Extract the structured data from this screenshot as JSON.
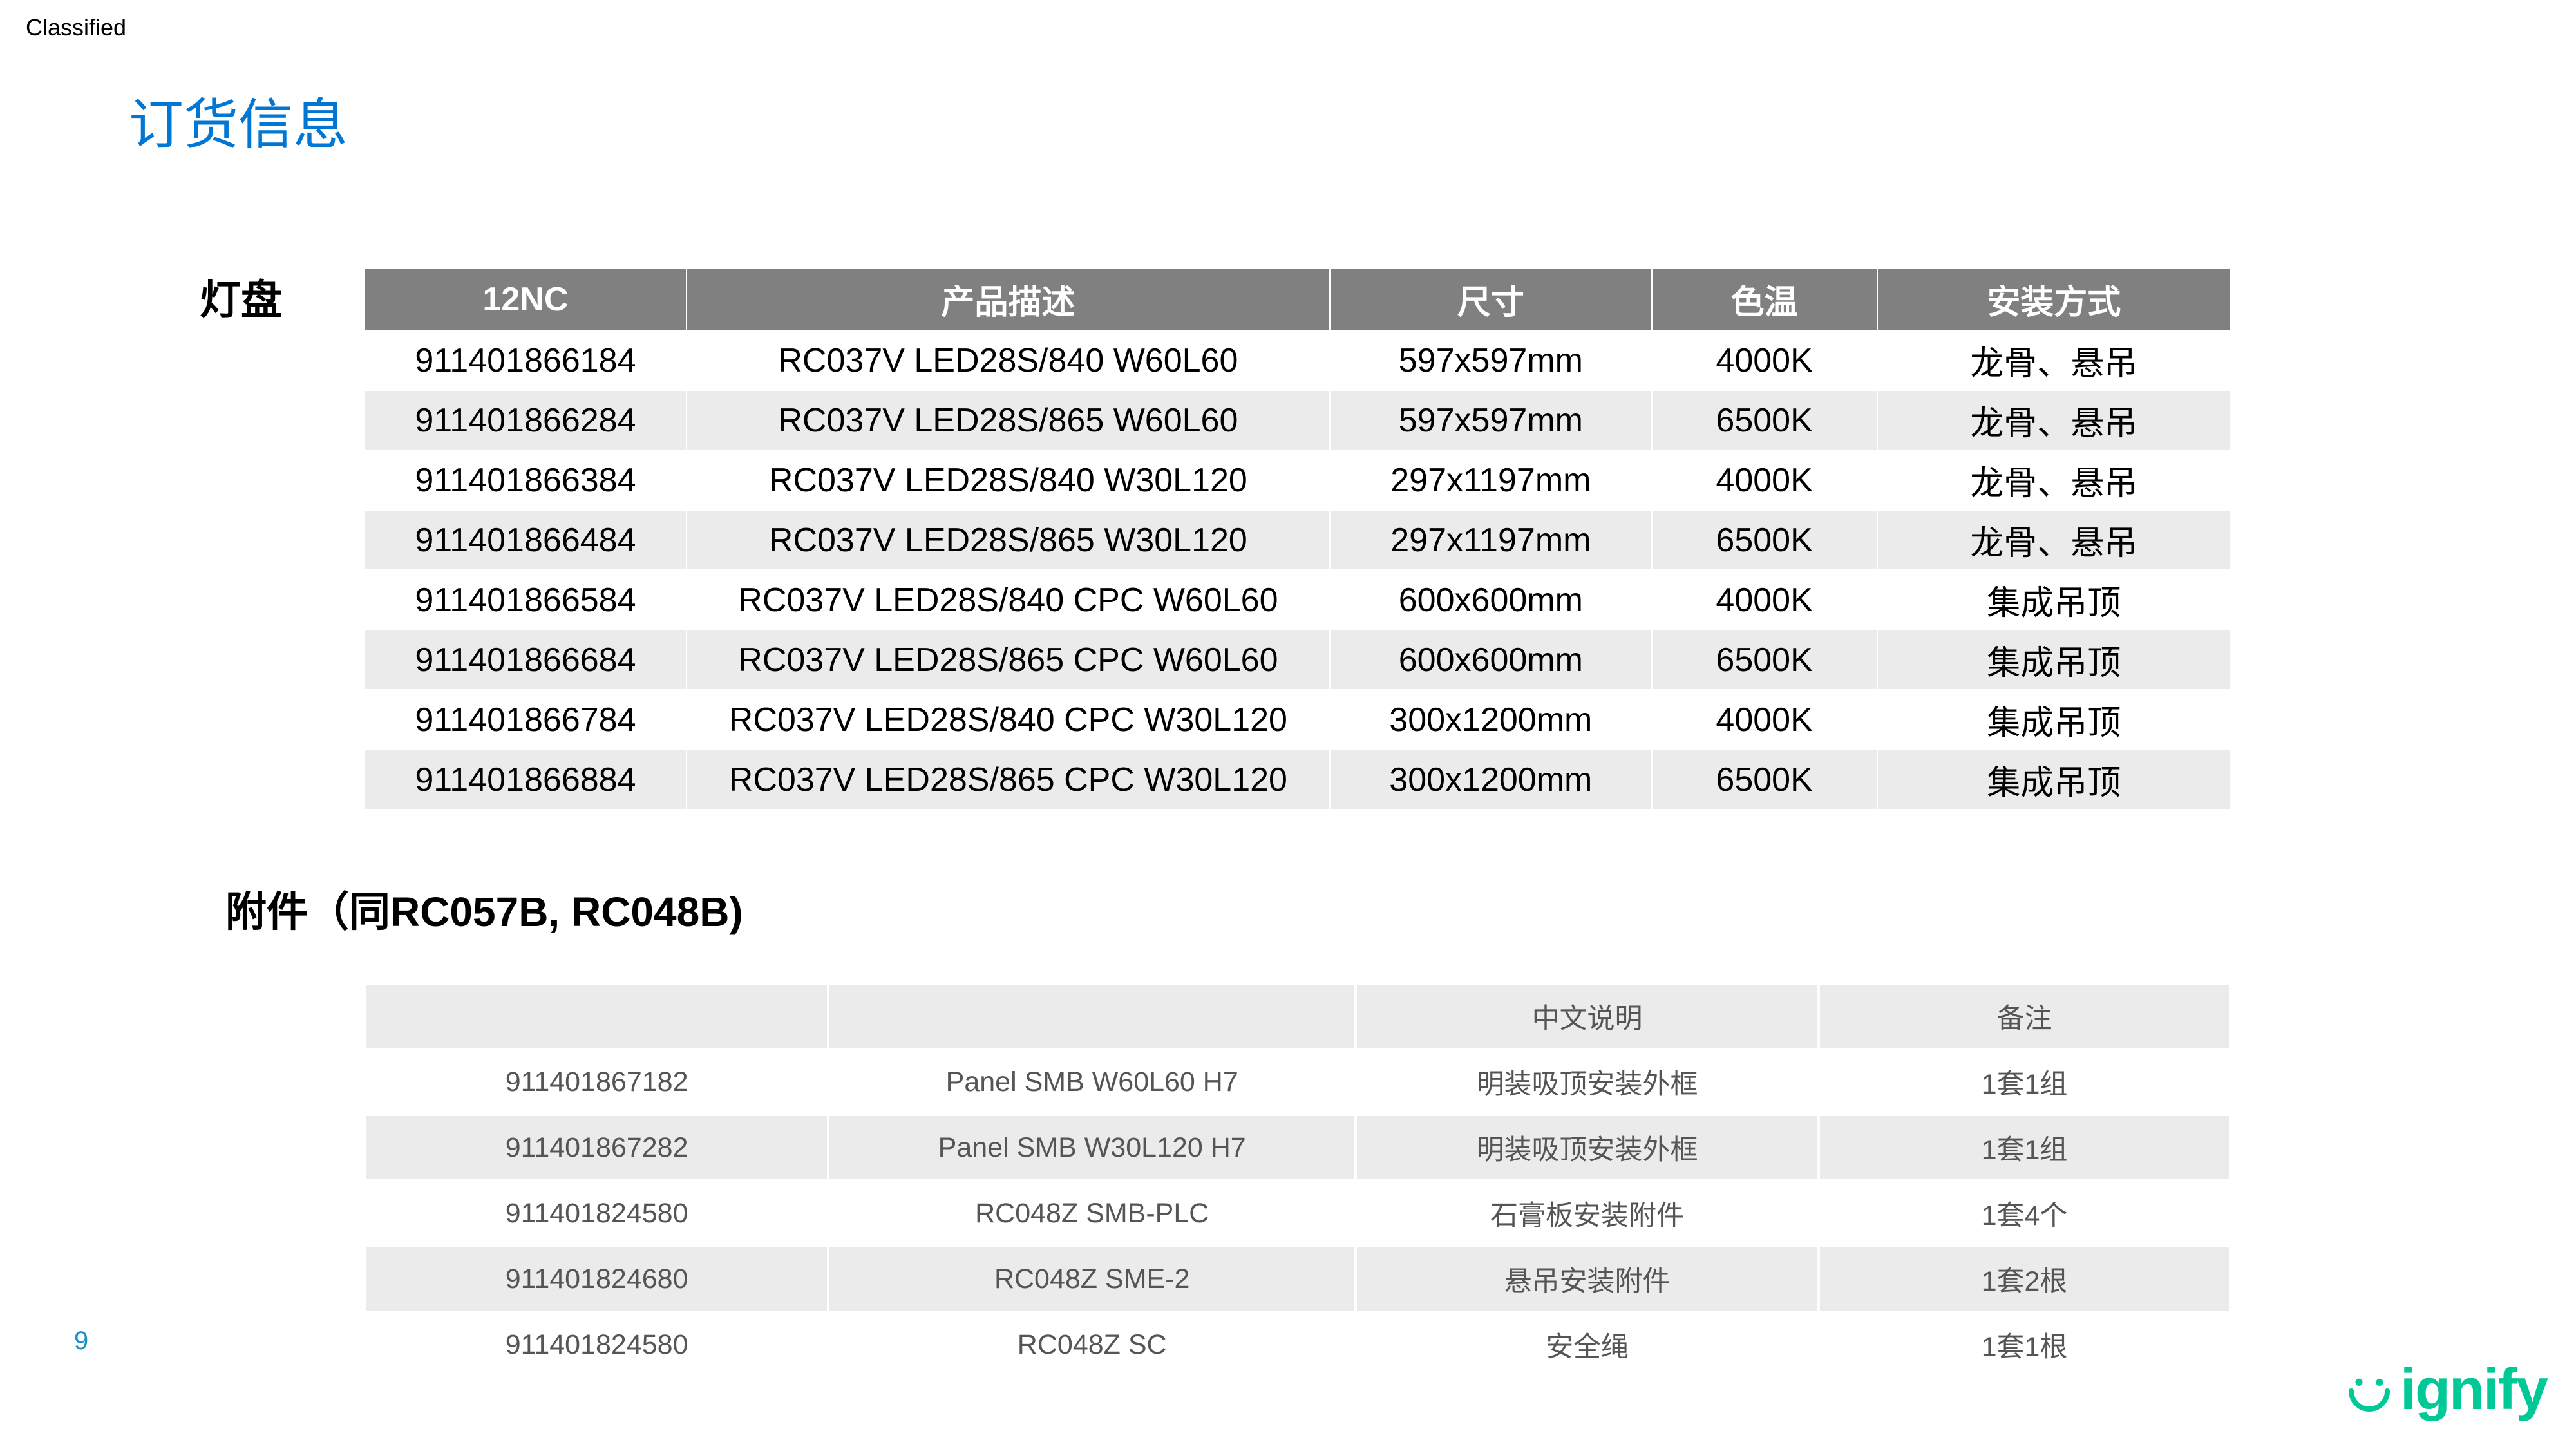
{
  "classified_label": "Classified",
  "page_title": "订货信息",
  "page_number": "9",
  "brand_text": "ignify",
  "colors": {
    "title": "#0077d4",
    "header_bg": "#808080",
    "header_fg": "#ffffff",
    "row_alt_bg": "#ebebeb",
    "row_bg": "#ffffff",
    "brand": "#00c896",
    "page_num": "#1e90c8"
  },
  "section1": {
    "label": "灯盘",
    "columns": [
      "12NC",
      "产品描述",
      "尺寸",
      "色温",
      "安装方式"
    ],
    "rows": [
      [
        "911401866184",
        "RC037V LED28S/840 W60L60",
        "597x597mm",
        "4000K",
        "龙骨、悬吊"
      ],
      [
        "911401866284",
        "RC037V LED28S/865 W60L60",
        "597x597mm",
        "6500K",
        "龙骨、悬吊"
      ],
      [
        "911401866384",
        "RC037V LED28S/840 W30L120",
        "297x1197mm",
        "4000K",
        "龙骨、悬吊"
      ],
      [
        "911401866484",
        "RC037V LED28S/865 W30L120",
        "297x1197mm",
        "6500K",
        "龙骨、悬吊"
      ],
      [
        "911401866584",
        "RC037V LED28S/840 CPC W60L60",
        "600x600mm",
        "4000K",
        "集成吊顶"
      ],
      [
        "911401866684",
        "RC037V LED28S/865 CPC W60L60",
        "600x600mm",
        "6500K",
        "集成吊顶"
      ],
      [
        "911401866784",
        "RC037V LED28S/840 CPC W30L120",
        "300x1200mm",
        "4000K",
        "集成吊顶"
      ],
      [
        "911401866884",
        "RC037V LED28S/865 CPC W30L120",
        "300x1200mm",
        "6500K",
        "集成吊顶"
      ]
    ]
  },
  "section2": {
    "label": "附件（同RC057B, RC048B)",
    "columns": [
      "",
      "",
      "中文说明",
      "备注"
    ],
    "rows": [
      [
        "911401867182",
        "Panel SMB W60L60 H7",
        "明装吸顶安装外框",
        "1套1组"
      ],
      [
        "911401867282",
        "Panel SMB W30L120 H7",
        "明装吸顶安装外框",
        "1套1组"
      ],
      [
        "911401824580",
        "RC048Z SMB-PLC",
        "石膏板安装附件",
        "1套4个"
      ],
      [
        "911401824680",
        "RC048Z SME-2",
        "悬吊安装附件",
        "1套2根"
      ],
      [
        "911401824580",
        "RC048Z SC",
        "安全绳",
        "1套1根"
      ]
    ]
  }
}
